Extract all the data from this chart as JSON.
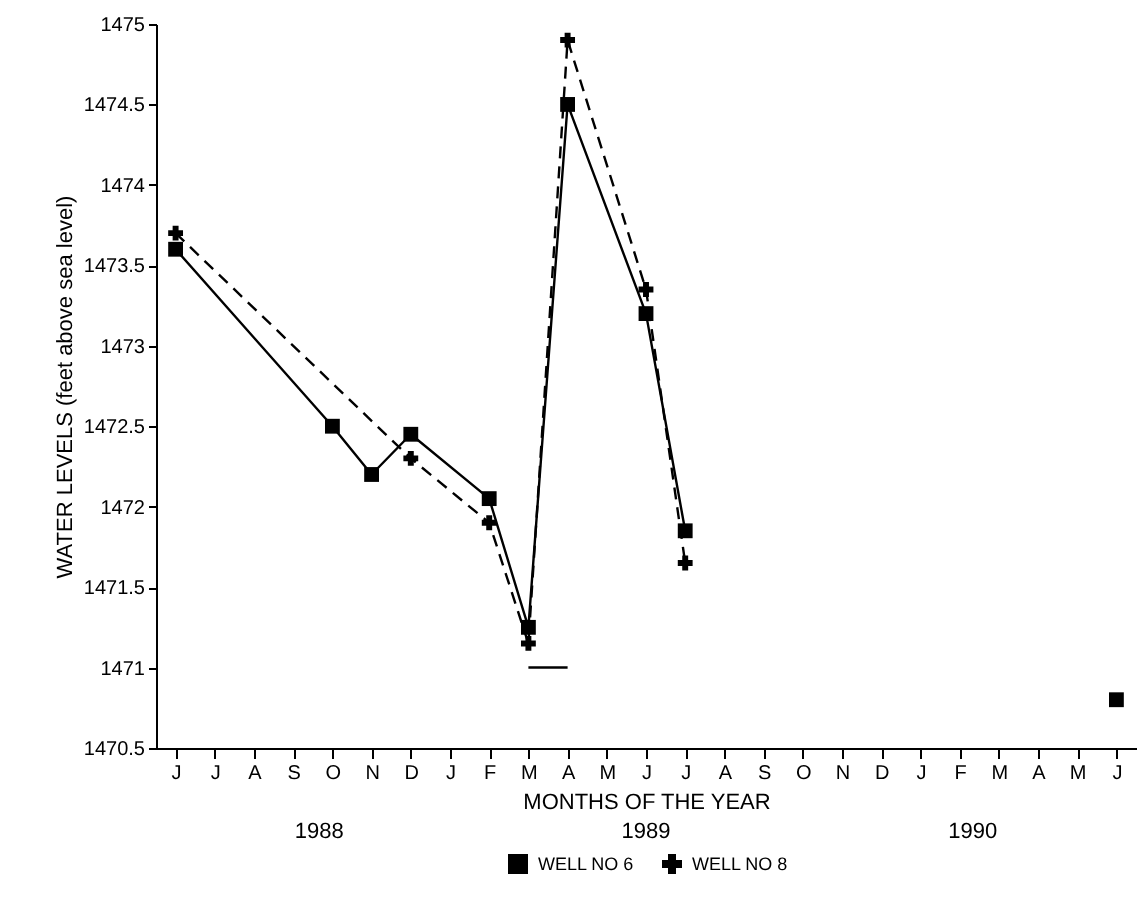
{
  "chart_data": {
    "type": "line",
    "xlabel": "MONTHS OF THE YEAR",
    "ylabel": "WATER LEVELS (feet above sea level)",
    "categories": [
      "J",
      "J",
      "A",
      "S",
      "O",
      "N",
      "D",
      "J",
      "F",
      "M",
      "A",
      "M",
      "J",
      "J",
      "A",
      "S",
      "O",
      "N",
      "D",
      "J",
      "F",
      "M",
      "A",
      "M",
      "J"
    ],
    "series": [
      {
        "name": "WELL NO 6",
        "color": "#000000",
        "marker": "square",
        "line_style": "solid",
        "values": [
          1473.6,
          null,
          null,
          null,
          1472.5,
          1472.2,
          1472.45,
          null,
          1472.05,
          1471.25,
          1474.5,
          null,
          1473.2,
          1471.85,
          null,
          null,
          null,
          null,
          null,
          null,
          null,
          null,
          null,
          null,
          null
        ]
      },
      {
        "name": "WELL NO 8",
        "color": "#000000",
        "marker": "cross",
        "line_style": "dashed",
        "values": [
          1473.7,
          null,
          null,
          null,
          null,
          null,
          1472.3,
          null,
          1471.9,
          1471.15,
          1474.9,
          null,
          1473.35,
          1471.65,
          null,
          null,
          null,
          null,
          null,
          null,
          null,
          null,
          null,
          null,
          null
        ]
      },
      {
        "color": "#000000",
        "marker": "none",
        "line_style": "solid",
        "values": [
          null,
          null,
          null,
          null,
          null,
          null,
          null,
          null,
          null,
          1471.0,
          1471.0,
          null,
          null,
          null,
          null,
          null,
          null,
          null,
          null,
          null,
          null,
          null,
          null,
          null,
          null
        ]
      },
      {
        "type": "scatter",
        "color": "#000000",
        "marker": "square",
        "values": [
          null,
          null,
          null,
          null,
          null,
          null,
          null,
          null,
          null,
          null,
          null,
          null,
          null,
          null,
          null,
          null,
          null,
          null,
          null,
          null,
          null,
          null,
          null,
          null,
          1470.8
        ]
      }
    ],
    "ylim": [
      1470.5,
      1475
    ],
    "yticks": [
      1470.5,
      1471,
      1471.5,
      1472,
      1472.5,
      1473,
      1473.5,
      1474,
      1474.5,
      1475
    ],
    "grid": false,
    "legend": "bottom",
    "annotations": [
      "1988",
      "1989",
      "1990"
    ]
  }
}
